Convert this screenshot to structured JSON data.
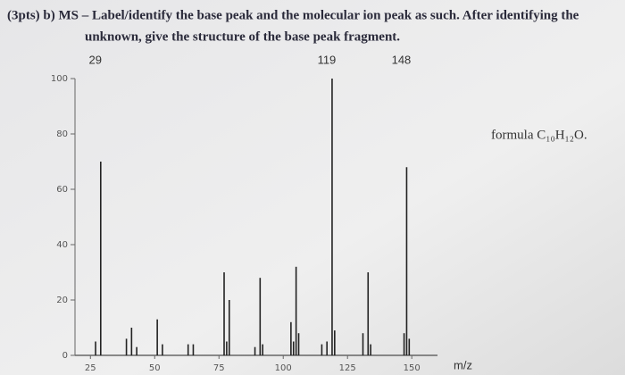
{
  "chart_data": {
    "type": "bar",
    "title": [
      "(3pts) b) MS – Label/identify the base peak and the molecular ion peak as such. After identifying the",
      "unknown, give the structure of the base peak fragment."
    ],
    "peak_labels": [
      29,
      119,
      148
    ],
    "formula": "formula C₁₀H₁₂O.",
    "xlabel": "m/z",
    "x": [
      27,
      29,
      39,
      41,
      43,
      51,
      53,
      63,
      65,
      77,
      78,
      79,
      89,
      91,
      92,
      103,
      104,
      105,
      106,
      115,
      117,
      119,
      120,
      131,
      133,
      134,
      147,
      148,
      149
    ],
    "values": [
      5,
      70,
      6,
      10,
      3,
      13,
      4,
      4,
      4,
      30,
      5,
      20,
      3,
      28,
      4,
      12,
      5,
      32,
      8,
      4,
      5,
      100,
      9,
      8,
      30,
      4,
      8,
      68,
      6
    ],
    "color": "#222",
    "xlim": [
      19,
      160
    ],
    "ylim": [
      0,
      100
    ],
    "xticks": [
      25,
      50,
      75,
      100,
      125,
      150
    ],
    "yticks": [
      0,
      20,
      40,
      60,
      80,
      100
    ]
  }
}
